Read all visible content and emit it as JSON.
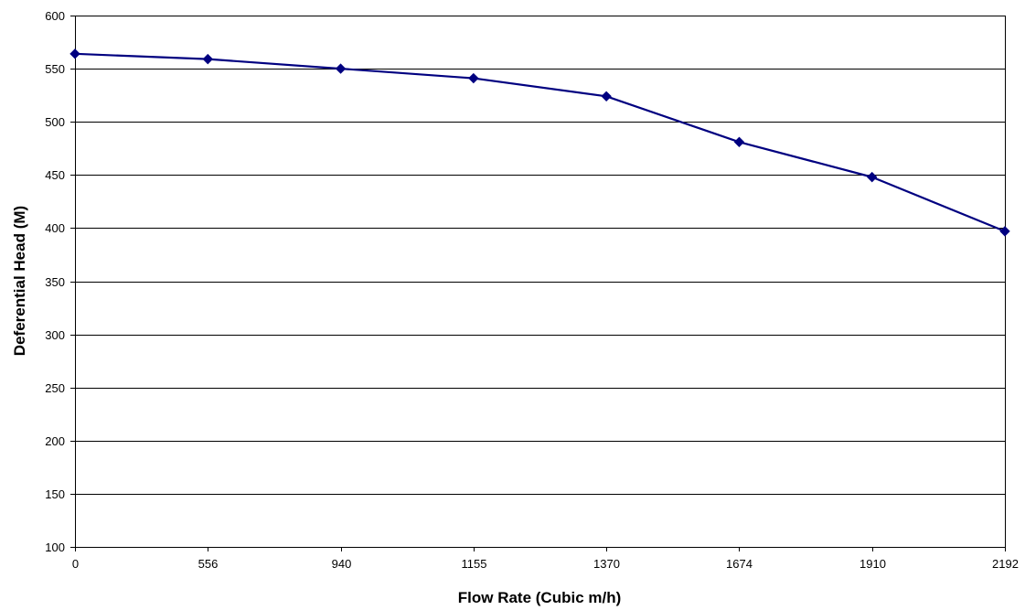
{
  "colors": {
    "series": "#000080",
    "grid": "#000000",
    "background": "#ffffff"
  },
  "chart_data": {
    "type": "line",
    "title": "",
    "xlabel": "Flow Rate (Cubic m/h)",
    "ylabel": "Deferential Head (M)",
    "categories": [
      "0",
      "556",
      "940",
      "1155",
      "1370",
      "1674",
      "1910",
      "2192"
    ],
    "series": [
      {
        "values": [
          564,
          559,
          550,
          541,
          524,
          481,
          448,
          397
        ]
      }
    ],
    "ylim": [
      100,
      600
    ],
    "yticks": [
      100,
      150,
      200,
      250,
      300,
      350,
      400,
      450,
      500,
      550,
      600
    ],
    "grid": true,
    "marker": "diamond",
    "legend": "none"
  }
}
